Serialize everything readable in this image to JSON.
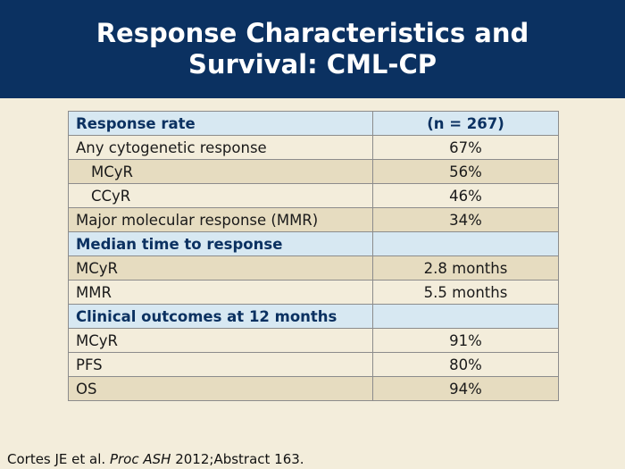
{
  "slide": {
    "title": "Response Characteristics and Survival: CML-CP"
  },
  "table": {
    "rows": [
      {
        "label": "Response rate",
        "value": "(n = 267)",
        "kind": "hdr"
      },
      {
        "label": "Any cytogenetic response",
        "value": "67%",
        "kind": "light"
      },
      {
        "label": "MCyR",
        "value": "56%",
        "kind": "dark",
        "indent": true
      },
      {
        "label": "CCyR",
        "value": "46%",
        "kind": "light",
        "indent": true
      },
      {
        "label": "Major molecular response (MMR)",
        "value": "34%",
        "kind": "dark"
      },
      {
        "label": "Median time to response",
        "value": "",
        "kind": "hdr"
      },
      {
        "label": "MCyR",
        "value": "2.8 months",
        "kind": "dark"
      },
      {
        "label": "MMR",
        "value": "5.5 months",
        "kind": "light"
      },
      {
        "label": "Clinical outcomes at 12 months",
        "value": "",
        "kind": "hdr"
      },
      {
        "label": "MCyR",
        "value": "91%",
        "kind": "light"
      },
      {
        "label": "PFS",
        "value": "80%",
        "kind": "light"
      },
      {
        "label": "OS",
        "value": "94%",
        "kind": "dark"
      }
    ]
  },
  "citation": {
    "authors": "Cortes JE et al.",
    "journal": "Proc ASH",
    "rest": "2012;Abstract 163."
  }
}
